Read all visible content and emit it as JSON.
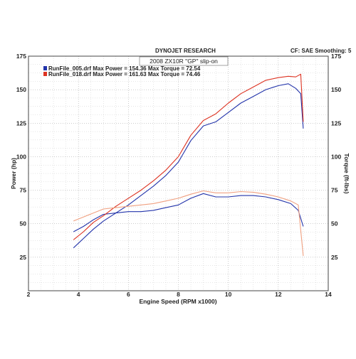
{
  "header": {
    "left": "DYNOJET RESEARCH",
    "right": "CF: SAE  Smoothing: 5"
  },
  "chart_data": {
    "type": "line",
    "title": "2008 ZX10R \"GP\" slip-on",
    "xlabel": "Engine Speed (RPM x1000)",
    "ylabel": "Power (hp)",
    "y2label": "Torque (ft-lbs)",
    "xlim": [
      2,
      14
    ],
    "ylim": [
      0,
      175
    ],
    "y2lim": [
      0,
      175
    ],
    "xticks": [
      "2",
      "4",
      "6",
      "8",
      "10",
      "12",
      "14"
    ],
    "yticks": [
      "25",
      "50",
      "75",
      "100",
      "125",
      "150",
      "175"
    ],
    "y2ticks": [
      "25",
      "50",
      "75",
      "100",
      "125",
      "150",
      "175"
    ],
    "grid": true,
    "legend": [
      {
        "text": "RunFile_005.drf Max Power = 154.36     Max Torque = 72.54",
        "color": "#2233aa"
      },
      {
        "text": "RunFile_018.drf Max Power = 161.63     Max Torque = 74.46",
        "color": "#dd3322"
      }
    ],
    "series": [
      {
        "name": "RunFile_005.drf Power",
        "color": "#2233aa",
        "x": [
          3.8,
          4.2,
          4.6,
          5.0,
          5.5,
          6.0,
          6.5,
          7.0,
          7.5,
          8.0,
          8.5,
          9.0,
          9.5,
          10.0,
          10.5,
          11.0,
          11.5,
          12.0,
          12.4,
          12.7,
          12.9,
          13.0
        ],
        "y": [
          32,
          39,
          46,
          52,
          58,
          64,
          71,
          78,
          86,
          96,
          112,
          123,
          126,
          133,
          140,
          145,
          150,
          153,
          154.4,
          151,
          147,
          121
        ]
      },
      {
        "name": "RunFile_005.drf Torque",
        "color": "#2233aa",
        "x": [
          3.8,
          4.2,
          4.6,
          5.0,
          5.5,
          6.0,
          6.5,
          7.0,
          7.5,
          8.0,
          8.5,
          9.0,
          9.5,
          10.0,
          10.5,
          11.0,
          11.5,
          12.0,
          12.5,
          12.8,
          13.0
        ],
        "y": [
          44,
          48,
          53,
          57,
          58,
          59,
          59,
          60,
          62,
          64,
          69,
          72.5,
          70,
          70,
          71,
          71,
          70,
          68,
          65,
          60,
          48
        ]
      },
      {
        "name": "RunFile_018.drf Power",
        "color": "#dd3322",
        "x": [
          3.8,
          4.2,
          4.6,
          5.0,
          5.5,
          6.0,
          6.5,
          7.0,
          7.5,
          8.0,
          8.5,
          9.0,
          9.5,
          10.0,
          10.5,
          11.0,
          11.5,
          12.0,
          12.4,
          12.7,
          12.9,
          13.0
        ],
        "y": [
          38,
          44,
          51,
          56,
          63,
          69,
          75,
          82,
          90,
          100,
          116,
          127,
          132,
          140,
          147,
          152,
          157,
          159,
          160,
          159.5,
          161.6,
          126
        ]
      },
      {
        "name": "RunFile_018.drf Torque",
        "color": "#f0a080",
        "x": [
          3.8,
          4.2,
          4.6,
          5.0,
          5.5,
          6.0,
          6.5,
          7.0,
          7.5,
          8.0,
          8.5,
          9.0,
          9.5,
          10.0,
          10.5,
          11.0,
          11.5,
          12.0,
          12.5,
          12.8,
          13.0
        ],
        "y": [
          52,
          55,
          58,
          61,
          62,
          63,
          64,
          65,
          67,
          69,
          72,
          74.5,
          73,
          73,
          74,
          73.5,
          72,
          70,
          67,
          64,
          26
        ]
      }
    ]
  }
}
